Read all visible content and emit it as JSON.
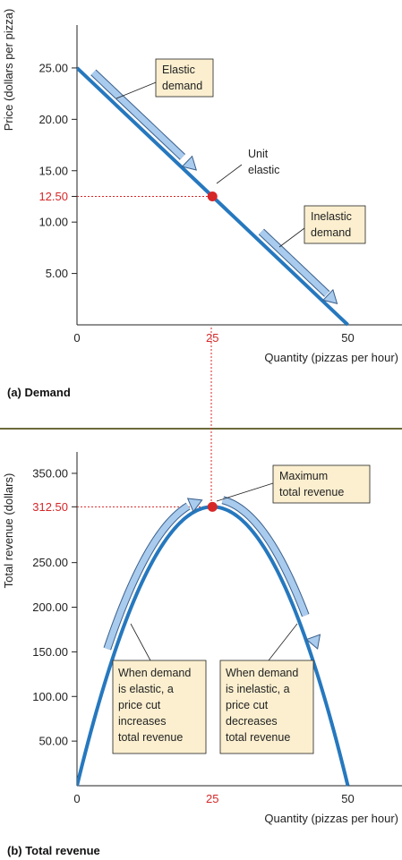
{
  "colors": {
    "curve": "#2678be",
    "arrow_fill": "#a9cbee",
    "highlight": "#d62728",
    "note_fill": "#fbefcf",
    "divider": "#6b6a3a"
  },
  "chart_data": [
    {
      "type": "line",
      "panel_title": "(a) Demand",
      "xlabel": "Quantity (pizzas per hour)",
      "ylabel": "Price (dollars per pizza)",
      "xlim": [
        0,
        60
      ],
      "ylim": [
        0,
        29
      ],
      "x_ticks": [
        0,
        25,
        50
      ],
      "x_tick_labels": [
        "0",
        "25",
        "50"
      ],
      "y_ticks": [
        5,
        10,
        15,
        20,
        25
      ],
      "y_tick_labels": [
        "5.00",
        "10.00",
        "15.00",
        "20.00",
        "25.00"
      ],
      "series": [
        {
          "x": [
            0,
            50
          ],
          "y": [
            25,
            0
          ]
        }
      ],
      "highlight_point": {
        "x": 25,
        "y": 12.5,
        "x_label": "25",
        "y_label": "12.50"
      },
      "annotations": [
        {
          "lines": [
            "Elastic",
            "demand"
          ]
        },
        {
          "lines": [
            "Unit",
            "elastic"
          ]
        },
        {
          "lines": [
            "Inelastic",
            "demand"
          ]
        }
      ]
    },
    {
      "type": "line",
      "panel_title": "(b) Total revenue",
      "xlabel": "Quantity (pizzas per hour)",
      "ylabel": "Total revenue (dollars)",
      "xlim": [
        0,
        60
      ],
      "ylim": [
        0,
        375
      ],
      "x_ticks": [
        0,
        25,
        50
      ],
      "x_tick_labels": [
        "0",
        "25",
        "50"
      ],
      "y_ticks": [
        50,
        100,
        150,
        200,
        250,
        350
      ],
      "y_tick_labels": [
        "50.00",
        "100.00",
        "150.00",
        "200.00",
        "250.00",
        "350.00"
      ],
      "series": [
        {
          "function": "TR = 25Q - 0.5Q^2",
          "x": [
            0,
            5,
            10,
            15,
            20,
            25,
            30,
            35,
            40,
            45,
            50
          ],
          "y": [
            0,
            112.5,
            200,
            262.5,
            300,
            312.5,
            300,
            262.5,
            200,
            112.5,
            0
          ]
        }
      ],
      "highlight_point": {
        "x": 25,
        "y": 312.5,
        "x_label": "25",
        "y_label": "312.50"
      },
      "annotations": [
        {
          "lines": [
            "Maximum",
            "total revenue"
          ]
        },
        {
          "lines": [
            "When demand",
            "is elastic, a",
            "price cut",
            "increases",
            "total revenue"
          ]
        },
        {
          "lines": [
            "When demand",
            "is inelastic, a",
            "price cut",
            "decreases",
            "total revenue"
          ]
        }
      ]
    }
  ]
}
